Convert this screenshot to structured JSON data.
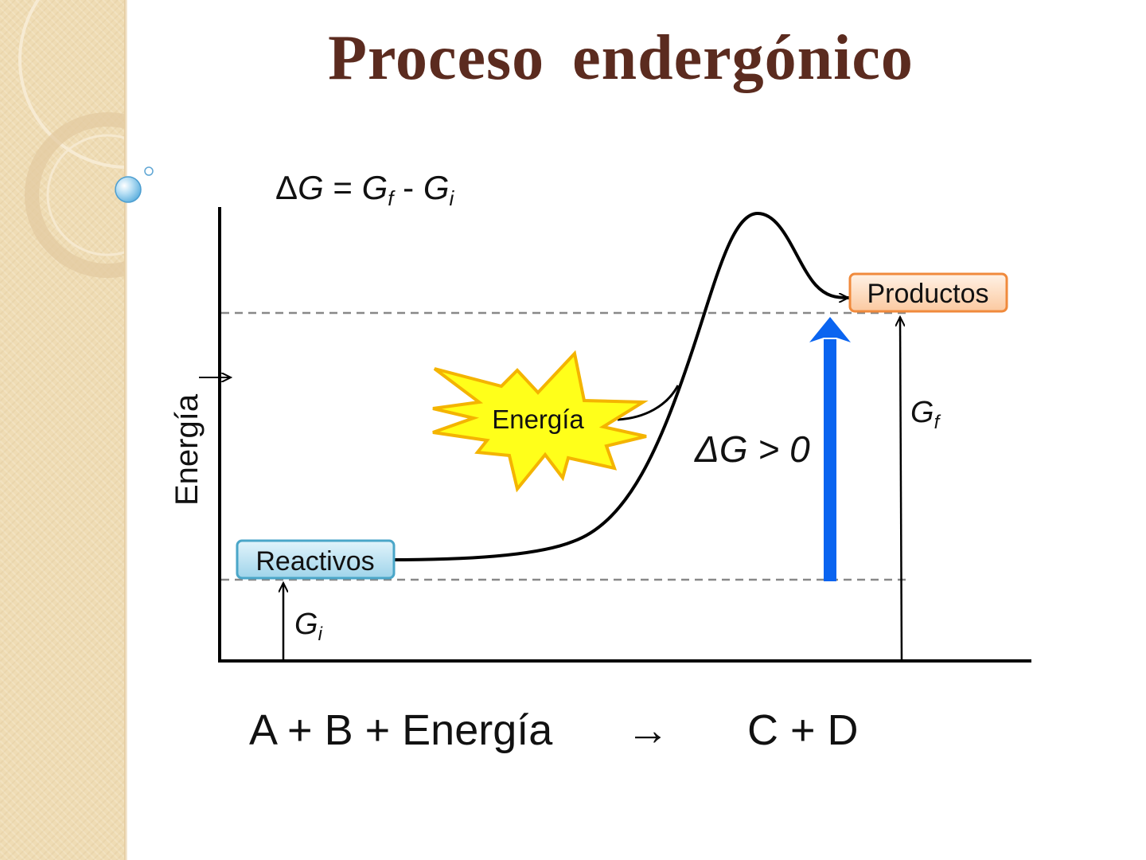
{
  "title": "Proceso  endergónico",
  "formula": {
    "delta": "Δ",
    "g": "G",
    "eq": " = ",
    "gf_g": "G",
    "gf_sub": "f",
    "minus": " - ",
    "gi_g": "G",
    "gi_sub": "i"
  },
  "axis": {
    "y_label": "Energía"
  },
  "labels": {
    "reactivos": "Reactivos",
    "productos": "Productos",
    "energia_burst": "Energía",
    "gi_g": "G",
    "gi_sub": "i",
    "gf_g": "G",
    "gf_sub": "f",
    "delta_g_positive": "ΔG > 0"
  },
  "equation": {
    "reactants": "A + B + Energía",
    "arrow": "→",
    "products": "C + D"
  },
  "colors": {
    "title": "#5b2b1f",
    "reactivos_fill": "#b8e0f0",
    "reactivos_border": "#4aa6c8",
    "productos_fill": "#fde0c8",
    "productos_border": "#f08a3c",
    "burst_fill": "#ffff1a",
    "burst_stroke": "#f4b400",
    "delta_arrow": "#0a64f0",
    "sidebar": "#efdcb4"
  }
}
